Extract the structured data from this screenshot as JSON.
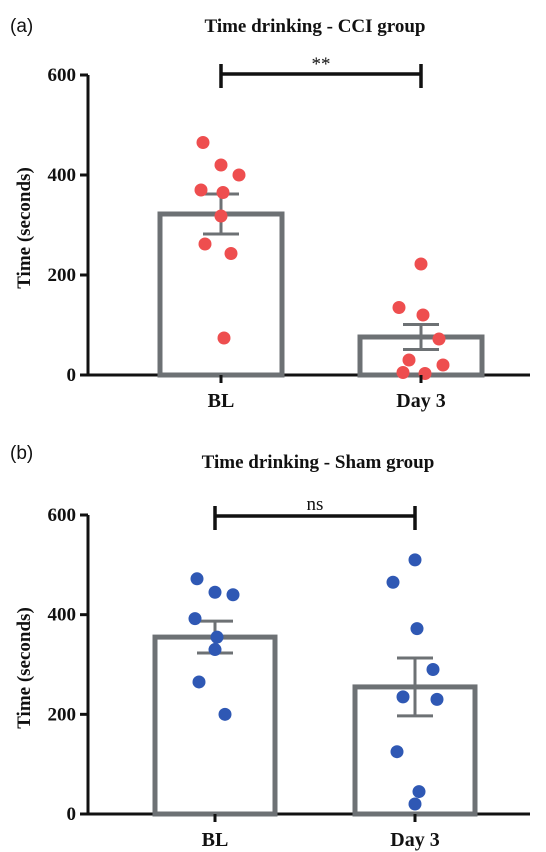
{
  "chart_data": [
    {
      "type": "bar",
      "panel_label": "(a)",
      "title": "Time drinking - CCI group",
      "ylabel": "Time (seconds)",
      "xlabel": "",
      "categories": [
        "BL",
        "Day 3"
      ],
      "ylim": [
        0,
        600
      ],
      "yticks": [
        "0",
        "200",
        "400",
        "600"
      ],
      "ytick_values": [
        0,
        200,
        400,
        600
      ],
      "means": [
        322,
        76
      ],
      "sem": [
        40,
        25
      ],
      "points": [
        [
          465,
          420,
          400,
          370,
          365,
          318,
          262,
          243,
          74
        ],
        [
          222,
          135,
          120,
          72,
          30,
          20,
          5,
          3
        ]
      ],
      "point_color": "#ee4e4f",
      "significance": "**",
      "grid": false
    },
    {
      "type": "bar",
      "panel_label": "(b)",
      "title": "Time drinking - Sham group",
      "ylabel": "Time (seconds)",
      "xlabel": "",
      "categories": [
        "BL",
        "Day 3"
      ],
      "ylim": [
        0,
        600
      ],
      "yticks": [
        "0",
        "200",
        "400",
        "600"
      ],
      "ytick_values": [
        0,
        200,
        400,
        600
      ],
      "means": [
        355,
        255
      ],
      "sem": [
        32,
        58
      ],
      "points": [
        [
          472,
          445,
          440,
          392,
          355,
          330,
          265,
          200
        ],
        [
          510,
          465,
          372,
          290,
          235,
          230,
          125,
          45,
          20
        ]
      ],
      "point_color": "#2f58b4",
      "significance": "ns",
      "grid": false
    }
  ]
}
